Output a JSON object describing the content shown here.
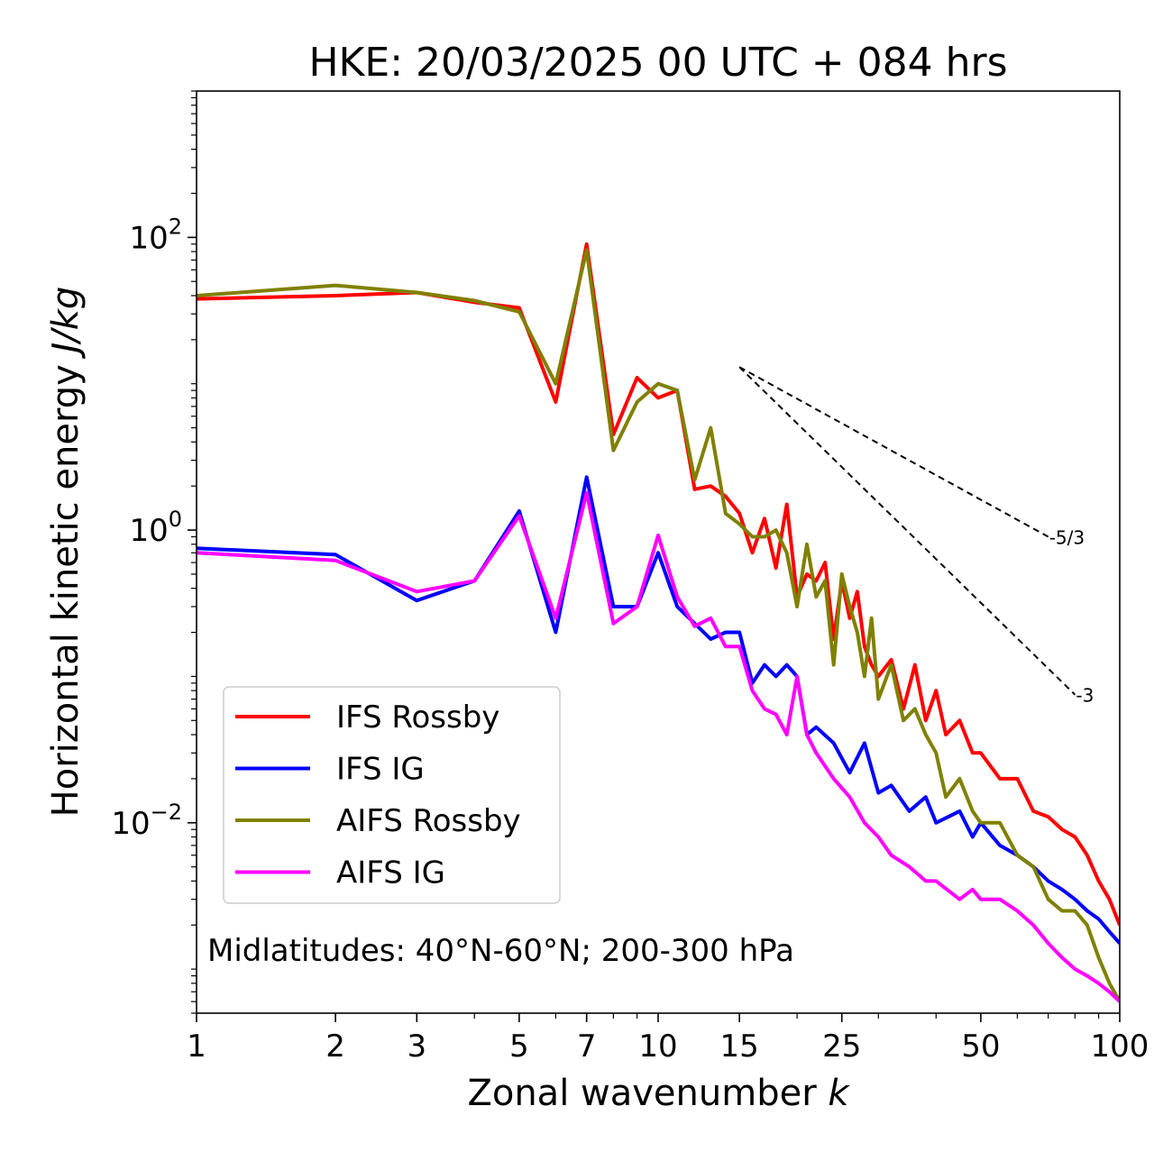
{
  "chart_data": {
    "type": "line",
    "title": "HKE: 20/03/2025 00 UTC + 084 hrs",
    "xlabel": "Zonal wavenumber",
    "xlabel_italic": "k",
    "ylabel": "Horizontal kinetic energy",
    "ylabel_italic": "J/kg",
    "xscale": "log",
    "yscale": "log",
    "xlim": [
      1,
      100
    ],
    "ylim": [
      0.0005,
      1000
    ],
    "xticks": [
      1,
      2,
      3,
      5,
      7,
      10,
      15,
      25,
      50,
      100
    ],
    "xtick_labels": [
      "1",
      "2",
      "3",
      "5",
      "7",
      "10",
      "15",
      "25",
      "50",
      "100"
    ],
    "yticks": [
      100,
      1,
      0.01
    ],
    "ytick_labels": [
      {
        "base": "10",
        "exp": "2"
      },
      {
        "base": "10",
        "exp": "0"
      },
      {
        "base": "10",
        "exp": "−2"
      }
    ],
    "annotation": "Midlatitudes: 40°N-60°N; 200-300 hPa",
    "legend_position": "lower-left",
    "reference_lines": [
      {
        "label": "-5/3",
        "slope": -1.6667,
        "x0": 15,
        "y0": 13.0,
        "x1": 70,
        "y1": 0.9
      },
      {
        "label": "-3",
        "slope": -3,
        "x0": 15,
        "y0": 13.0,
        "x1": 80,
        "y1": 0.075
      }
    ],
    "series": [
      {
        "name": "IFS Rossby",
        "color": "#ff0000",
        "x": [
          1,
          2,
          3,
          4,
          5,
          6,
          7,
          8,
          9,
          10,
          11,
          12,
          13,
          14,
          15,
          16,
          17,
          18,
          19,
          20,
          21,
          22,
          23,
          24,
          25,
          26,
          27,
          28,
          29,
          30,
          32,
          34,
          36,
          38,
          40,
          42,
          45,
          48,
          50,
          55,
          60,
          65,
          70,
          75,
          80,
          85,
          90,
          95,
          100
        ],
        "y": [
          38,
          40,
          42,
          36,
          33,
          7.5,
          90,
          4.5,
          11,
          8.0,
          9.0,
          1.9,
          2.0,
          1.7,
          1.3,
          0.7,
          1.2,
          0.55,
          1.5,
          0.35,
          0.5,
          0.45,
          0.6,
          0.18,
          0.45,
          0.25,
          0.38,
          0.16,
          0.12,
          0.1,
          0.13,
          0.06,
          0.12,
          0.05,
          0.08,
          0.04,
          0.05,
          0.03,
          0.03,
          0.02,
          0.02,
          0.012,
          0.011,
          0.009,
          0.008,
          0.006,
          0.004,
          0.003,
          0.002
        ]
      },
      {
        "name": "IFS IG",
        "color": "#0000ff",
        "x": [
          1,
          2,
          3,
          4,
          5,
          6,
          7,
          8,
          9,
          10,
          11,
          12,
          13,
          14,
          15,
          16,
          17,
          18,
          19,
          20,
          21,
          22,
          24,
          26,
          28,
          30,
          32,
          35,
          38,
          40,
          45,
          48,
          50,
          55,
          60,
          65,
          70,
          75,
          80,
          85,
          90,
          95,
          100
        ],
        "y": [
          0.75,
          0.68,
          0.33,
          0.45,
          1.35,
          0.2,
          2.3,
          0.3,
          0.3,
          0.7,
          0.3,
          0.23,
          0.18,
          0.2,
          0.2,
          0.09,
          0.12,
          0.1,
          0.12,
          0.1,
          0.04,
          0.045,
          0.035,
          0.022,
          0.035,
          0.016,
          0.018,
          0.012,
          0.015,
          0.01,
          0.012,
          0.008,
          0.01,
          0.007,
          0.006,
          0.005,
          0.004,
          0.0035,
          0.003,
          0.0025,
          0.0022,
          0.0018,
          0.0015
        ]
      },
      {
        "name": "AIFS Rossby",
        "color": "#808000",
        "x": [
          1,
          2,
          3,
          4,
          5,
          6,
          7,
          8,
          9,
          10,
          11,
          12,
          13,
          14,
          15,
          16,
          17,
          18,
          19,
          20,
          21,
          22,
          23,
          24,
          25,
          26,
          27,
          28,
          29,
          30,
          32,
          34,
          36,
          38,
          40,
          42,
          45,
          48,
          50,
          55,
          60,
          65,
          70,
          75,
          80,
          85,
          90,
          95,
          100
        ],
        "y": [
          40,
          47,
          42,
          37,
          31,
          10,
          82,
          3.5,
          7.5,
          10,
          9.0,
          2.2,
          5.0,
          1.3,
          1.1,
          0.9,
          0.9,
          1.0,
          0.7,
          0.3,
          0.8,
          0.35,
          0.45,
          0.12,
          0.5,
          0.3,
          0.2,
          0.1,
          0.25,
          0.07,
          0.12,
          0.05,
          0.06,
          0.04,
          0.03,
          0.015,
          0.02,
          0.012,
          0.01,
          0.01,
          0.006,
          0.005,
          0.003,
          0.0025,
          0.0025,
          0.002,
          0.0012,
          0.0008,
          0.0006
        ]
      },
      {
        "name": "AIFS IG",
        "color": "#ff00ff",
        "x": [
          1,
          2,
          3,
          4,
          5,
          6,
          7,
          8,
          9,
          10,
          11,
          12,
          13,
          14,
          15,
          16,
          17,
          18,
          19,
          20,
          21,
          22,
          24,
          26,
          28,
          30,
          32,
          35,
          38,
          40,
          45,
          48,
          50,
          55,
          60,
          65,
          70,
          75,
          80,
          85,
          90,
          95,
          100
        ],
        "y": [
          0.7,
          0.62,
          0.38,
          0.45,
          1.25,
          0.25,
          1.8,
          0.23,
          0.3,
          0.92,
          0.35,
          0.22,
          0.25,
          0.16,
          0.16,
          0.08,
          0.06,
          0.055,
          0.04,
          0.1,
          0.04,
          0.03,
          0.02,
          0.015,
          0.01,
          0.008,
          0.006,
          0.005,
          0.004,
          0.004,
          0.003,
          0.0035,
          0.003,
          0.003,
          0.0025,
          0.002,
          0.0015,
          0.0012,
          0.001,
          0.0009,
          0.0008,
          0.0007,
          0.0006
        ]
      }
    ]
  }
}
